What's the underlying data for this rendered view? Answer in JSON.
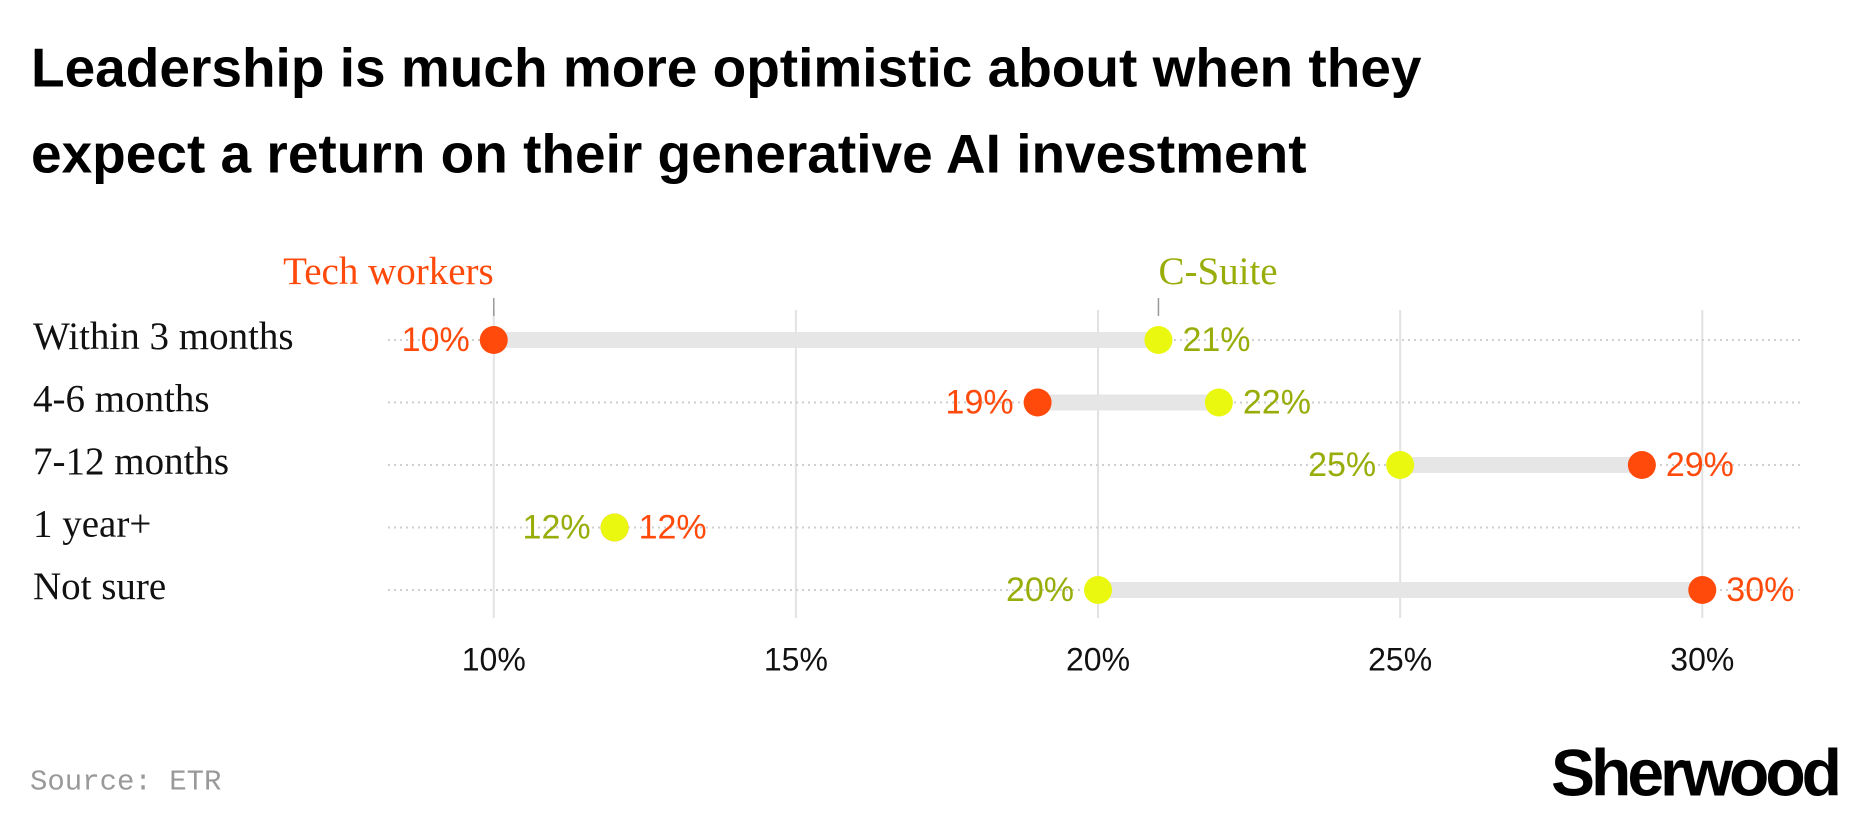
{
  "chart_data": {
    "type": "dumbbell",
    "title": [
      "Leadership is much more optimistic about when they",
      "expect a return on their generative AI investment"
    ],
    "categories": [
      "Within 3 months",
      "4-6 months",
      "7-12 months",
      "1 year+",
      "Not sure"
    ],
    "series": [
      {
        "name": "Tech workers",
        "color": "#ff4a0c",
        "label_color": "#ff4a0c",
        "values": [
          10,
          19,
          29,
          12,
          30
        ],
        "value_labels": [
          "10%",
          "19%",
          "29%",
          "12%",
          "30%"
        ]
      },
      {
        "name": "C-Suite",
        "color": "#eaf80f",
        "label_color": "#99ad0a",
        "values": [
          21,
          22,
          25,
          12,
          20
        ],
        "value_labels": [
          "21%",
          "22%",
          "25%",
          "12%",
          "20%"
        ]
      }
    ],
    "xlim": [
      8.25,
      31.65
    ],
    "xticks": [
      {
        "value": 10,
        "label": "10%"
      },
      {
        "value": 15,
        "label": "15%"
      },
      {
        "value": 20,
        "label": "20%"
      },
      {
        "value": 25,
        "label": "25%"
      },
      {
        "value": 30,
        "label": "30%"
      }
    ],
    "grid": true,
    "source": "Source: ETR",
    "logo": "Sherwood"
  }
}
